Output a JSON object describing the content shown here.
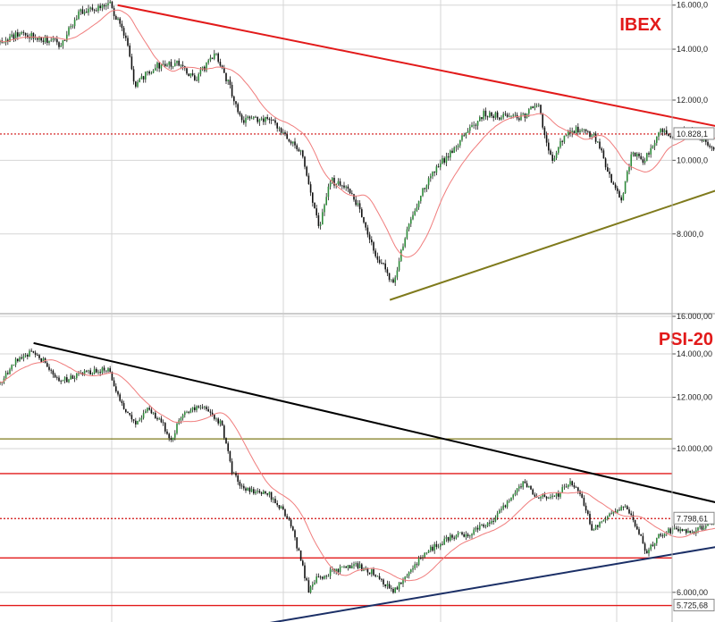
{
  "chart_data": [
    {
      "type": "candlestick",
      "title": "IBEX",
      "title_color": "#e21a1a",
      "scale": "log",
      "y_ticks": [
        {
          "value": 16000,
          "label": "16.000,0"
        },
        {
          "value": 14000,
          "label": "14.000,0"
        },
        {
          "value": 12000,
          "label": "12.000,0"
        },
        {
          "value": 10000,
          "label": "10.000,0"
        },
        {
          "value": 8000,
          "label": "8.000,0"
        }
      ],
      "ylim": [
        6300,
        16250
      ],
      "last_value": 10828.1,
      "last_label": "10.828,1",
      "key_points": [
        {
          "t": 0,
          "v": 14300
        },
        {
          "t": 0.03,
          "v": 14700
        },
        {
          "t": 0.06,
          "v": 14500
        },
        {
          "t": 0.09,
          "v": 14200
        },
        {
          "t": 0.12,
          "v": 15700
        },
        {
          "t": 0.165,
          "v": 16000
        },
        {
          "t": 0.19,
          "v": 14200
        },
        {
          "t": 0.2,
          "v": 12500
        },
        {
          "t": 0.23,
          "v": 13300
        },
        {
          "t": 0.27,
          "v": 13400
        },
        {
          "t": 0.29,
          "v": 12700
        },
        {
          "t": 0.32,
          "v": 13900
        },
        {
          "t": 0.33,
          "v": 13300
        },
        {
          "t": 0.36,
          "v": 11300
        },
        {
          "t": 0.4,
          "v": 11300
        },
        {
          "t": 0.42,
          "v": 10900
        },
        {
          "t": 0.45,
          "v": 10200
        },
        {
          "t": 0.475,
          "v": 8100
        },
        {
          "t": 0.49,
          "v": 9400
        },
        {
          "t": 0.51,
          "v": 9300
        },
        {
          "t": 0.53,
          "v": 8800
        },
        {
          "t": 0.56,
          "v": 7500
        },
        {
          "t": 0.585,
          "v": 6900
        },
        {
          "t": 0.6,
          "v": 7800
        },
        {
          "t": 0.63,
          "v": 9200
        },
        {
          "t": 0.66,
          "v": 10000
        },
        {
          "t": 0.69,
          "v": 10800
        },
        {
          "t": 0.72,
          "v": 11500
        },
        {
          "t": 0.75,
          "v": 11400
        },
        {
          "t": 0.78,
          "v": 11400
        },
        {
          "t": 0.8,
          "v": 11900
        },
        {
          "t": 0.82,
          "v": 10000
        },
        {
          "t": 0.845,
          "v": 10900
        },
        {
          "t": 0.87,
          "v": 11000
        },
        {
          "t": 0.89,
          "v": 10600
        },
        {
          "t": 0.91,
          "v": 9300
        },
        {
          "t": 0.925,
          "v": 8900
        },
        {
          "t": 0.94,
          "v": 10200
        },
        {
          "t": 0.96,
          "v": 10000
        },
        {
          "t": 0.98,
          "v": 10900
        },
        {
          "t": 1.0,
          "v": 10800
        },
        {
          "t": 1.03,
          "v": 10900
        },
        {
          "t": 1.06,
          "v": 10400
        },
        {
          "t": 1.08,
          "v": 9500
        },
        {
          "t": 1.1,
          "v": 10000
        },
        {
          "t": 1.12,
          "v": 9700
        },
        {
          "t": 1.135,
          "v": 10828
        }
      ],
      "reference_lines": [
        {
          "kind": "horizontal",
          "value": 10828.1,
          "color": "#d01010",
          "style": "dotted"
        }
      ],
      "trendlines": [
        {
          "color": "#e21a1a",
          "from": {
            "t": 0.175,
            "v": 16000
          },
          "to": {
            "t": 1.25,
            "v": 10280
          }
        },
        {
          "color": "#7f7a1c",
          "from": {
            "t": 0.58,
            "v": 6550
          },
          "to": {
            "t": 1.25,
            "v": 10350
          }
        }
      ]
    },
    {
      "type": "candlestick",
      "title": "PSI-20",
      "title_color": "#e21a1a",
      "scale": "log",
      "y_ticks": [
        {
          "value": 16000,
          "label": "16.000,00"
        },
        {
          "value": 14000,
          "label": "14.000,00"
        },
        {
          "value": 12000,
          "label": "12.000,00"
        },
        {
          "value": 10000,
          "label": "10.000,00"
        },
        {
          "value": 6000,
          "label": "6.000,00"
        }
      ],
      "ylim": [
        5400,
        16100
      ],
      "last_value": 7798.61,
      "last_label": "7.798,61",
      "low_value": 5725.68,
      "low_label": "5.725,68",
      "key_points": [
        {
          "t": 0,
          "v": 12600
        },
        {
          "t": 0.025,
          "v": 13700
        },
        {
          "t": 0.05,
          "v": 14100
        },
        {
          "t": 0.075,
          "v": 13300
        },
        {
          "t": 0.09,
          "v": 12700
        },
        {
          "t": 0.12,
          "v": 13000
        },
        {
          "t": 0.16,
          "v": 13300
        },
        {
          "t": 0.18,
          "v": 11800
        },
        {
          "t": 0.2,
          "v": 10900
        },
        {
          "t": 0.22,
          "v": 11500
        },
        {
          "t": 0.24,
          "v": 11000
        },
        {
          "t": 0.255,
          "v": 10300
        },
        {
          "t": 0.27,
          "v": 11300
        },
        {
          "t": 0.3,
          "v": 11600
        },
        {
          "t": 0.33,
          "v": 10900
        },
        {
          "t": 0.345,
          "v": 9200
        },
        {
          "t": 0.36,
          "v": 8700
        },
        {
          "t": 0.4,
          "v": 8500
        },
        {
          "t": 0.43,
          "v": 7800
        },
        {
          "t": 0.445,
          "v": 6900
        },
        {
          "t": 0.46,
          "v": 6000
        },
        {
          "t": 0.47,
          "v": 6300
        },
        {
          "t": 0.5,
          "v": 6500
        },
        {
          "t": 0.53,
          "v": 6600
        },
        {
          "t": 0.56,
          "v": 6400
        },
        {
          "t": 0.585,
          "v": 6000
        },
        {
          "t": 0.61,
          "v": 6500
        },
        {
          "t": 0.64,
          "v": 7000
        },
        {
          "t": 0.67,
          "v": 7300
        },
        {
          "t": 0.7,
          "v": 7400
        },
        {
          "t": 0.73,
          "v": 7700
        },
        {
          "t": 0.76,
          "v": 8400
        },
        {
          "t": 0.78,
          "v": 8900
        },
        {
          "t": 0.8,
          "v": 8400
        },
        {
          "t": 0.83,
          "v": 8500
        },
        {
          "t": 0.85,
          "v": 8900
        },
        {
          "t": 0.87,
          "v": 8200
        },
        {
          "t": 0.88,
          "v": 7500
        },
        {
          "t": 0.9,
          "v": 7800
        },
        {
          "t": 0.93,
          "v": 8200
        },
        {
          "t": 0.95,
          "v": 7500
        },
        {
          "t": 0.96,
          "v": 6900
        },
        {
          "t": 0.98,
          "v": 7300
        },
        {
          "t": 1.0,
          "v": 7500
        },
        {
          "t": 1.03,
          "v": 7400
        },
        {
          "t": 1.06,
          "v": 7700
        },
        {
          "t": 1.1,
          "v": 8100
        },
        {
          "t": 1.12,
          "v": 7600
        },
        {
          "t": 1.145,
          "v": 7900
        },
        {
          "t": 1.165,
          "v": 7600
        },
        {
          "t": 1.18,
          "v": 7800
        }
      ],
      "reference_lines": [
        {
          "kind": "horizontal",
          "value": 10350,
          "color": "#7f7a1c",
          "style": "solid"
        },
        {
          "kind": "horizontal",
          "value": 9150,
          "color": "#e21a1a",
          "style": "solid"
        },
        {
          "kind": "horizontal",
          "value": 7798.61,
          "color": "#d01010",
          "style": "dotted"
        },
        {
          "kind": "horizontal",
          "value": 6780,
          "color": "#e21a1a",
          "style": "solid"
        },
        {
          "kind": "horizontal",
          "value": 5725.68,
          "color": "#e21a1a",
          "style": "solid"
        }
      ],
      "trendlines": [
        {
          "color": "#000000",
          "from": {
            "t": 0.05,
            "v": 14550
          },
          "to": {
            "t": 1.25,
            "v": 7450
          }
        },
        {
          "color": "#1b2f66",
          "from": {
            "t": 0.4,
            "v": 5380
          },
          "to": {
            "t": 1.25,
            "v": 7600
          }
        }
      ]
    }
  ],
  "colors": {
    "ma_line": "#f07c7c",
    "candle_up": "#2e8b3a",
    "candle_down": "#111111",
    "grid": "#d6d6d6",
    "last_box_border": "#888888",
    "low_label_text": "#e21a1a"
  }
}
